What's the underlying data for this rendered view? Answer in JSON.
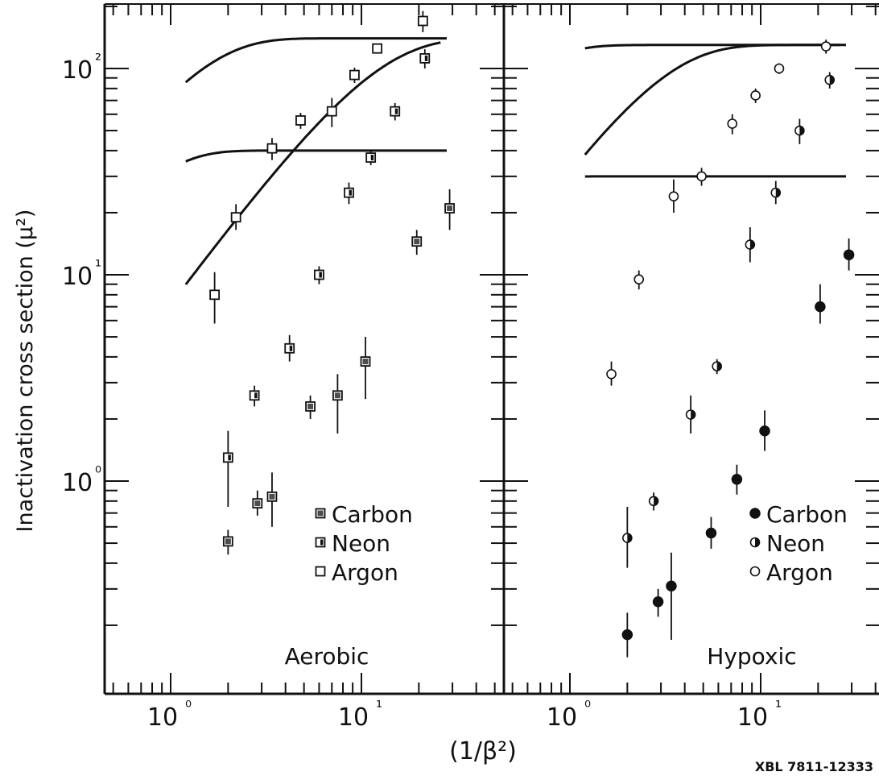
{
  "figure_id": "XBL 7811-12333",
  "x_axis_label": "(1/β²)",
  "y_axis_label": "Inactivation cross section (μ²)",
  "ink_color": "#111111",
  "chart_data": [
    {
      "type": "scatter",
      "panel_label": "Aerobic",
      "xlabel": "(1/β²)",
      "ylabel": "Inactivation cross section (μ²)",
      "x_scale": "log",
      "y_scale": "log",
      "xlim": [
        0.5,
        50
      ],
      "ylim": [
        0.13,
        200
      ],
      "x_tick_labels": [
        "10⁰",
        "10¹"
      ],
      "y_tick_labels": [
        "10⁰",
        "10¹",
        "10²"
      ],
      "legend_position": "lower-right",
      "legend": [
        {
          "name": "Carbon",
          "marker": "square-filled"
        },
        {
          "name": "Neon",
          "marker": "square-half"
        },
        {
          "name": "Argon",
          "marker": "square-open"
        }
      ],
      "series": [
        {
          "name": "Carbon",
          "marker": "square-filled",
          "points": [
            [
              2.0,
              0.51,
              0.44,
              0.58
            ],
            [
              2.85,
              0.78,
              0.68,
              0.9
            ],
            [
              3.4,
              0.84,
              0.6,
              1.1
            ],
            [
              5.4,
              2.3,
              2.0,
              2.6
            ],
            [
              7.5,
              2.6,
              1.7,
              3.3
            ],
            [
              10.5,
              3.8,
              2.5,
              5.0
            ],
            [
              19.5,
              14.5,
              12.5,
              16.5
            ],
            [
              29.0,
              21.0,
              16.5,
              26.0
            ]
          ]
        },
        {
          "name": "Neon",
          "marker": "square-half",
          "points": [
            [
              2.0,
              1.3,
              0.75,
              1.75
            ],
            [
              2.75,
              2.6,
              2.3,
              2.9
            ],
            [
              4.2,
              4.4,
              3.8,
              5.1
            ],
            [
              6.0,
              10.0,
              9.0,
              11.0
            ],
            [
              8.6,
              25.0,
              22.0,
              28.0
            ],
            [
              11.2,
              37.0,
              34.0,
              40.0
            ],
            [
              15.0,
              62.0,
              56.0,
              68.0
            ],
            [
              21.5,
              112.0,
              100.0,
              124.0
            ]
          ]
        },
        {
          "name": "Argon",
          "marker": "square-open",
          "points": [
            [
              1.7,
              8.0,
              5.8,
              10.3
            ],
            [
              2.2,
              19.0,
              16.5,
              22.0
            ],
            [
              3.4,
              41.0,
              36.0,
              46.0
            ],
            [
              4.8,
              56.0,
              51.0,
              61.0
            ],
            [
              7.0,
              62.0,
              52.0,
              72.0
            ],
            [
              9.2,
              93.0,
              85.0,
              101.0
            ],
            [
              12.1,
              125.0,
              118.0,
              132.0
            ],
            [
              21.0,
              170.0,
              150.0,
              190.0
            ]
          ]
        }
      ],
      "fit_curves": [
        {
          "name": "Carbon",
          "sigma0": 40,
          "m": 1.4,
          "c": 1.45,
          "x_range": [
            1.2,
            28
          ]
        },
        {
          "name": "Neon",
          "sigma0": 140,
          "m": 1.3,
          "c": 0.8,
          "x_range": [
            1.2,
            28
          ]
        },
        {
          "name": "Argon",
          "sigma0": 140,
          "m": 1.25,
          "c": 0.095,
          "x_range": [
            1.2,
            26
          ]
        }
      ]
    },
    {
      "type": "scatter",
      "panel_label": "Hypoxic",
      "xlabel": "(1/β²)",
      "ylabel": "Inactivation cross section (μ²)",
      "x_scale": "log",
      "y_scale": "log",
      "xlim": [
        0.5,
        50
      ],
      "ylim": [
        0.13,
        200
      ],
      "x_tick_labels": [
        "10⁰",
        "10¹"
      ],
      "y_tick_labels": [],
      "legend_position": "lower-right",
      "legend": [
        {
          "name": "Carbon",
          "marker": "circle-filled"
        },
        {
          "name": "Neon",
          "marker": "circle-half"
        },
        {
          "name": "Argon",
          "marker": "circle-open"
        }
      ],
      "series": [
        {
          "name": "Carbon",
          "marker": "circle-filled",
          "points": [
            [
              2.0,
              0.18,
              0.14,
              0.23
            ],
            [
              2.9,
              0.26,
              0.22,
              0.3
            ],
            [
              3.4,
              0.31,
              0.17,
              0.45
            ],
            [
              5.5,
              0.56,
              0.47,
              0.67
            ],
            [
              7.5,
              1.02,
              0.86,
              1.2
            ],
            [
              10.5,
              1.75,
              1.4,
              2.2
            ],
            [
              20.5,
              7.0,
              5.8,
              9.0
            ],
            [
              29.0,
              12.5,
              10.5,
              15.0
            ]
          ]
        },
        {
          "name": "Neon",
          "marker": "circle-half",
          "points": [
            [
              2.0,
              0.53,
              0.38,
              0.75
            ],
            [
              2.75,
              0.8,
              0.72,
              0.88
            ],
            [
              4.3,
              2.1,
              1.7,
              2.6
            ],
            [
              5.9,
              3.6,
              3.3,
              3.9
            ],
            [
              8.8,
              14.0,
              11.5,
              17.0
            ],
            [
              12.0,
              25.0,
              22.0,
              28.5
            ],
            [
              16.0,
              50.0,
              43.0,
              57.0
            ],
            [
              23.0,
              88.0,
              80.0,
              96.0
            ]
          ]
        },
        {
          "name": "Argon",
          "marker": "circle-open",
          "points": [
            [
              1.65,
              3.3,
              2.9,
              3.8
            ],
            [
              2.3,
              9.5,
              8.5,
              10.5
            ],
            [
              3.5,
              24.0,
              20.0,
              29.0
            ],
            [
              4.9,
              30.0,
              27.0,
              33.0
            ],
            [
              7.1,
              54.0,
              48.0,
              60.0
            ],
            [
              9.4,
              74.0,
              68.0,
              80.0
            ],
            [
              12.5,
              100.0,
              94.0,
              106.0
            ],
            [
              22.0,
              128.0,
              118.0,
              138.0
            ]
          ]
        }
      ],
      "fit_curves": [
        {
          "name": "Carbon",
          "sigma0": 30,
          "m": 1.4,
          "c": 3.2,
          "x_range": [
            1.2,
            28
          ]
        },
        {
          "name": "Neon",
          "sigma0": 130,
          "m": 1.3,
          "c": 2.1,
          "x_range": [
            1.2,
            28
          ]
        },
        {
          "name": "Argon",
          "sigma0": 130,
          "m": 1.3,
          "c": 0.37,
          "x_range": [
            1.2,
            26
          ]
        }
      ]
    }
  ]
}
